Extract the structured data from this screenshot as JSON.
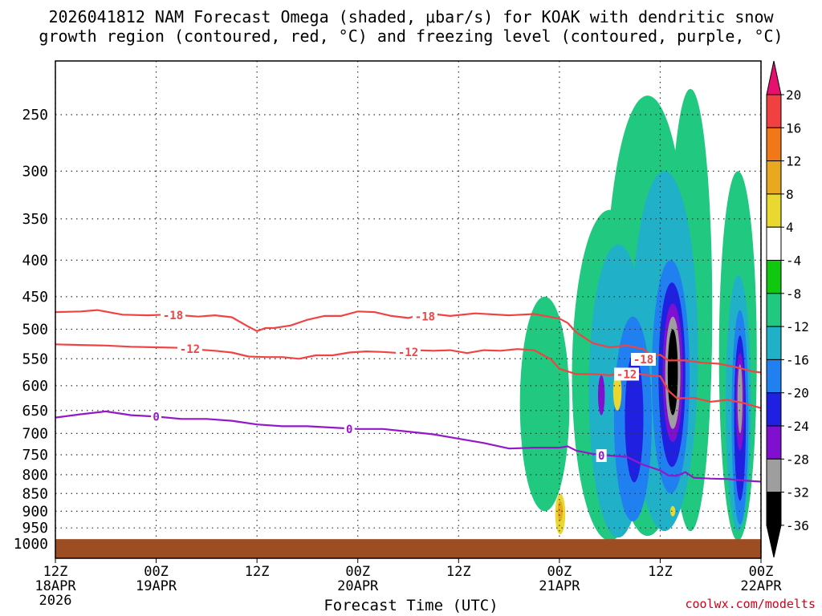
{
  "title_line1": "2026041812 NAM Forecast Omega (shaded, μbar/s) for KOAK with dendritic snow",
  "title_line2": "growth region (contoured, red, °C) and freezing level (contoured, purple, °C)",
  "credit": "coolwx.com/modelts",
  "chart_data": {
    "type": "heatmap",
    "title": "2026041812 NAM Forecast Omega (shaded, μbar/s) for KOAK with dendritic snow growth region (contoured, red, °C) and freezing level (contoured, purple, °C)",
    "xlabel": "Forecast Time (UTC)",
    "ylabel": "",
    "y_axis": {
      "scale": "log-pressure (hPa)",
      "range": [
        1000,
        200
      ],
      "ticks": [
        250,
        300,
        350,
        400,
        450,
        500,
        550,
        600,
        650,
        700,
        750,
        800,
        850,
        900,
        950,
        1000
      ]
    },
    "x_axis": {
      "range_hours": [
        0,
        84
      ],
      "ticks": [
        {
          "h": 0,
          "lines": [
            "12Z",
            "18APR",
            "2026"
          ]
        },
        {
          "h": 12,
          "lines": [
            "00Z",
            "19APR"
          ]
        },
        {
          "h": 24,
          "lines": [
            "12Z"
          ]
        },
        {
          "h": 36,
          "lines": [
            "00Z",
            "20APR"
          ]
        },
        {
          "h": 48,
          "lines": [
            "12Z"
          ]
        },
        {
          "h": 60,
          "lines": [
            "00Z",
            "21APR"
          ]
        },
        {
          "h": 72,
          "lines": [
            "12Z"
          ]
        },
        {
          "h": 84,
          "lines": [
            "00Z",
            "22APR"
          ]
        }
      ]
    },
    "grid": true,
    "colorbar": {
      "ticks": [
        "20",
        "16",
        "12",
        "8",
        "4",
        "-4",
        "-8",
        "-12",
        "-16",
        "-20",
        "-24",
        "-28",
        "-32",
        "-36"
      ],
      "colors": [
        "#e8106e",
        "#f04040",
        "#f07818",
        "#e8a820",
        "#e8d830",
        "#ffffff",
        "#10c810",
        "#20c880",
        "#20b0c8",
        "#2080f0",
        "#2020e0",
        "#8010d0",
        "#9e9e9e",
        "#000000"
      ]
    },
    "series": [
      {
        "name": "-18",
        "color": "#f04444",
        "points": [
          [
            0,
            473
          ],
          [
            3,
            472
          ],
          [
            5,
            470
          ],
          [
            8,
            477
          ],
          [
            11,
            478
          ],
          [
            13,
            477
          ],
          [
            15,
            478
          ],
          [
            17,
            480
          ],
          [
            19,
            478
          ],
          [
            21,
            481
          ],
          [
            23,
            496
          ],
          [
            24,
            503
          ],
          [
            25,
            498
          ],
          [
            26,
            498
          ],
          [
            28,
            494
          ],
          [
            30,
            485
          ],
          [
            32,
            479
          ],
          [
            34,
            479
          ],
          [
            36,
            472
          ],
          [
            38,
            473
          ],
          [
            40,
            479
          ],
          [
            42,
            482
          ],
          [
            43,
            479
          ],
          [
            45,
            476
          ],
          [
            47,
            479
          ],
          [
            50,
            475
          ],
          [
            54,
            478
          ],
          [
            57,
            476
          ],
          [
            60,
            483
          ],
          [
            61,
            490
          ],
          [
            62,
            505
          ],
          [
            64,
            523
          ],
          [
            66,
            530
          ],
          [
            68,
            527
          ],
          [
            70,
            533
          ],
          [
            71,
            545
          ],
          [
            72,
            543
          ],
          [
            73,
            553
          ],
          [
            75,
            553
          ],
          [
            77,
            557
          ],
          [
            79,
            559
          ],
          [
            81,
            565
          ],
          [
            83,
            573
          ],
          [
            84,
            575
          ]
        ]
      },
      {
        "name": "-12",
        "color": "#f04444",
        "points": [
          [
            0,
            525
          ],
          [
            3,
            526
          ],
          [
            6,
            527
          ],
          [
            9,
            529
          ],
          [
            12,
            530
          ],
          [
            15,
            531
          ],
          [
            17,
            534
          ],
          [
            19,
            536
          ],
          [
            21,
            539
          ],
          [
            23,
            546
          ],
          [
            25,
            547
          ],
          [
            27,
            547
          ],
          [
            29,
            550
          ],
          [
            31,
            544
          ],
          [
            33,
            544
          ],
          [
            35,
            539
          ],
          [
            37,
            537
          ],
          [
            39,
            538
          ],
          [
            41,
            540
          ],
          [
            43,
            535
          ],
          [
            45,
            536
          ],
          [
            47,
            535
          ],
          [
            49,
            540
          ],
          [
            51,
            535
          ],
          [
            53,
            536
          ],
          [
            55,
            533
          ],
          [
            57,
            535
          ],
          [
            59,
            551
          ],
          [
            60,
            568
          ],
          [
            62,
            578
          ],
          [
            64,
            578
          ],
          [
            66,
            580
          ],
          [
            68,
            574
          ],
          [
            70,
            579
          ],
          [
            72,
            582
          ],
          [
            73,
            610
          ],
          [
            74,
            625
          ],
          [
            76,
            624
          ],
          [
            78,
            632
          ],
          [
            80,
            628
          ],
          [
            82,
            635
          ],
          [
            84,
            645
          ]
        ]
      },
      {
        "name": "0",
        "color": "#9418c8",
        "points": [
          [
            0,
            665
          ],
          [
            3,
            658
          ],
          [
            6,
            652
          ],
          [
            9,
            660
          ],
          [
            12,
            663
          ],
          [
            15,
            668
          ],
          [
            18,
            668
          ],
          [
            21,
            672
          ],
          [
            24,
            680
          ],
          [
            27,
            684
          ],
          [
            30,
            684
          ],
          [
            33,
            687
          ],
          [
            36,
            690
          ],
          [
            39,
            690
          ],
          [
            42,
            696
          ],
          [
            45,
            702
          ],
          [
            48,
            712
          ],
          [
            51,
            722
          ],
          [
            54,
            735
          ],
          [
            57,
            733
          ],
          [
            60,
            733
          ],
          [
            61,
            730
          ],
          [
            62,
            740
          ],
          [
            64,
            748
          ],
          [
            66,
            752
          ],
          [
            68,
            755
          ],
          [
            70,
            775
          ],
          [
            72,
            789
          ],
          [
            73,
            802
          ],
          [
            74,
            803
          ],
          [
            75,
            793
          ],
          [
            76,
            808
          ],
          [
            78,
            810
          ],
          [
            80,
            811
          ],
          [
            82,
            815
          ],
          [
            84,
            818
          ]
        ]
      }
    ],
    "contour_labels": [
      {
        "text": "-18",
        "h": 14,
        "p": 478,
        "color": "#f04444"
      },
      {
        "text": "-18",
        "h": 44,
        "p": 480,
        "color": "#f04444"
      },
      {
        "text": "-12",
        "h": 16,
        "p": 533,
        "color": "#f04444"
      },
      {
        "text": "-12",
        "h": 42,
        "p": 538,
        "color": "#f04444"
      },
      {
        "text": "-18",
        "h": 70,
        "p": 551,
        "color": "#f04444"
      },
      {
        "text": "-12",
        "h": 68,
        "p": 578,
        "color": "#f04444"
      },
      {
        "text": "0",
        "h": 12,
        "p": 663,
        "color": "#9418c8"
      },
      {
        "text": "0",
        "h": 35,
        "p": 690,
        "color": "#9418c8"
      },
      {
        "text": "0",
        "h": 65,
        "p": 752,
        "color": "#9418c8"
      }
    ],
    "shaded_regions": [
      {
        "level": "-8",
        "h0": 55.3,
        "h1": 61.2,
        "p0": 450,
        "p1": 900
      },
      {
        "level": "-8",
        "h0": 61.5,
        "h1": 70.5,
        "p0": 340,
        "p1": 990
      },
      {
        "level": "-8",
        "h0": 65.5,
        "h1": 75.5,
        "p0": 235,
        "p1": 975
      },
      {
        "level": "-8",
        "h0": 73.0,
        "h1": 78.2,
        "p0": 230,
        "p1": 960
      },
      {
        "level": "-8",
        "h0": 79.0,
        "h1": 83.5,
        "p0": 300,
        "p1": 990
      },
      {
        "level": "-12",
        "h0": 63.5,
        "h1": 70.5,
        "p0": 380,
        "p1": 980
      },
      {
        "level": "-12",
        "h0": 68.5,
        "h1": 76.5,
        "p0": 300,
        "p1": 960
      },
      {
        "level": "-12",
        "h0": 79.8,
        "h1": 82.8,
        "p0": 420,
        "p1": 960
      },
      {
        "level": "-16",
        "h0": 66.5,
        "h1": 71.0,
        "p0": 480,
        "p1": 930
      },
      {
        "level": "-16",
        "h0": 71.0,
        "h1": 75.5,
        "p0": 400,
        "p1": 850
      },
      {
        "level": "-16",
        "h0": 80.5,
        "h1": 82.5,
        "p0": 470,
        "p1": 940
      },
      {
        "level": "-20",
        "h0": 67.8,
        "h1": 70.0,
        "p0": 540,
        "p1": 820
      },
      {
        "level": "-20",
        "h0": 71.8,
        "h1": 75.0,
        "p0": 430,
        "p1": 780
      },
      {
        "level": "-20",
        "h0": 80.8,
        "h1": 82.2,
        "p0": 510,
        "p1": 870
      },
      {
        "level": "-24",
        "h0": 64.6,
        "h1": 65.4,
        "p0": 580,
        "p1": 660
      },
      {
        "level": "-24",
        "h0": 72.3,
        "h1": 74.7,
        "p0": 460,
        "p1": 720
      },
      {
        "level": "-24",
        "h0": 81.0,
        "h1": 82.0,
        "p0": 540,
        "p1": 740
      },
      {
        "level": "-28",
        "h0": 72.6,
        "h1": 74.4,
        "p0": 480,
        "p1": 690
      },
      {
        "level": "-28",
        "h0": 81.2,
        "h1": 81.8,
        "p0": 560,
        "p1": 700
      },
      {
        "level": "-32",
        "h0": 72.9,
        "h1": 74.1,
        "p0": 500,
        "p1": 660
      },
      {
        "level": "-36",
        "h0": 73.1,
        "h1": 73.9,
        "p0": 520,
        "p1": 630
      },
      {
        "level": "4",
        "h0": 59.5,
        "h1": 60.7,
        "p0": 850,
        "p1": 970
      },
      {
        "level": "8",
        "h0": 59.8,
        "h1": 60.4,
        "p0": 870,
        "p1": 930
      },
      {
        "level": "4",
        "h0": 66.4,
        "h1": 67.4,
        "p0": 575,
        "p1": 650
      },
      {
        "level": "4",
        "h0": 73.2,
        "h1": 73.8,
        "p0": 885,
        "p1": 915
      }
    ],
    "ground": {
      "color": "#9c4d22",
      "p0": 985,
      "p1": 1060
    }
  }
}
